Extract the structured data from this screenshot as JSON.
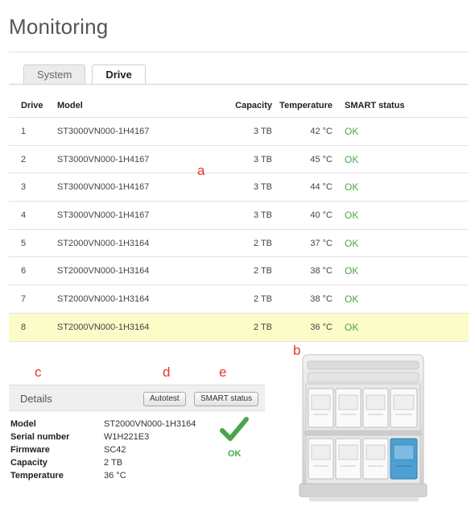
{
  "page": {
    "title": "Monitoring"
  },
  "tabs": [
    {
      "label": "System",
      "active": false
    },
    {
      "label": "Drive",
      "active": true
    }
  ],
  "table": {
    "headers": {
      "drive": "Drive",
      "model": "Model",
      "capacity": "Capacity",
      "temperature": "Temperature",
      "smart": "SMART status"
    },
    "rows": [
      {
        "drive": "1",
        "model": "ST3000VN000-1H4167",
        "capacity": "3 TB",
        "temperature": "42 °C",
        "smart": "OK"
      },
      {
        "drive": "2",
        "model": "ST3000VN000-1H4167",
        "capacity": "3 TB",
        "temperature": "45 °C",
        "smart": "OK"
      },
      {
        "drive": "3",
        "model": "ST3000VN000-1H4167",
        "capacity": "3 TB",
        "temperature": "44 °C",
        "smart": "OK"
      },
      {
        "drive": "4",
        "model": "ST3000VN000-1H4167",
        "capacity": "3 TB",
        "temperature": "40 °C",
        "smart": "OK"
      },
      {
        "drive": "5",
        "model": "ST2000VN000-1H3164",
        "capacity": "2 TB",
        "temperature": "37 °C",
        "smart": "OK"
      },
      {
        "drive": "6",
        "model": "ST2000VN000-1H3164",
        "capacity": "2 TB",
        "temperature": "38 °C",
        "smart": "OK"
      },
      {
        "drive": "7",
        "model": "ST2000VN000-1H3164",
        "capacity": "2 TB",
        "temperature": "38 °C",
        "smart": "OK"
      },
      {
        "drive": "8",
        "model": "ST2000VN000-1H3164",
        "capacity": "2 TB",
        "temperature": "36 °C",
        "smart": "OK"
      }
    ],
    "selected_drive": "8"
  },
  "annotations": {
    "a": "a",
    "b": "b",
    "c": "c",
    "d": "d",
    "e": "e"
  },
  "details": {
    "title": "Details",
    "autotest_label": "Autotest",
    "smart_status_label": "SMART status",
    "properties": [
      {
        "label": "Model",
        "value": "ST2000VN000-1H3164"
      },
      {
        "label": "Serial number",
        "value": "W1H221E3"
      },
      {
        "label": "Firmware",
        "value": "SC42"
      },
      {
        "label": "Capacity",
        "value": "2 TB"
      },
      {
        "label": "Temperature",
        "value": "36 °C"
      }
    ],
    "status_label": "OK",
    "status_icon": "checkmark-icon"
  },
  "colors": {
    "ok": "#4aa54a",
    "selected_row": "#fcfcc8",
    "annotation": "#e8342b",
    "selected_drive_bay": "#4d9fd1"
  }
}
